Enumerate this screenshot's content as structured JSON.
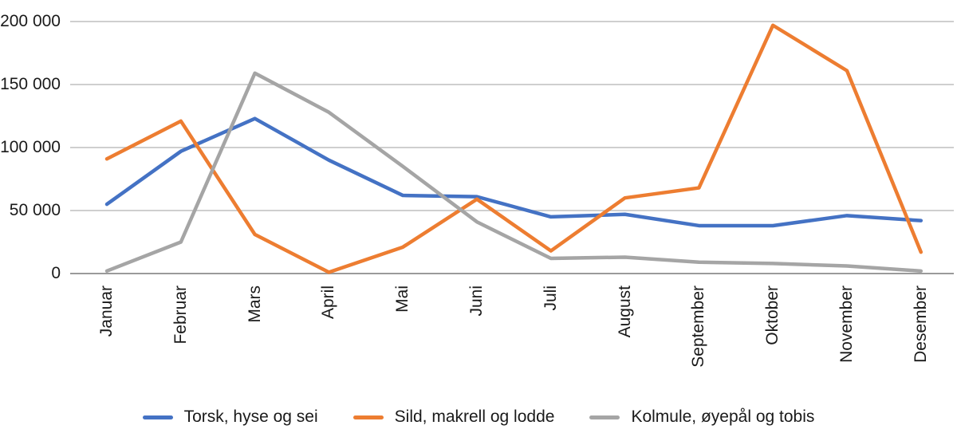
{
  "chart_data": {
    "type": "line",
    "title": "",
    "xlabel": "",
    "ylabel": "",
    "ylim": [
      0,
      200000
    ],
    "grid": "horizontal",
    "legend_position": "bottom",
    "categories": [
      "Januar",
      "Februar",
      "Mars",
      "April",
      "Mai",
      "Juni",
      "Juli",
      "August",
      "September",
      "Oktober",
      "November",
      "Desember"
    ],
    "y_axis": {
      "ticks": [
        {
          "label": "0",
          "value": 0
        },
        {
          "label": "50 000",
          "value": 50000
        },
        {
          "label": "100 000",
          "value": 100000
        },
        {
          "label": "150 000",
          "value": 150000
        },
        {
          "label": "200 000",
          "value": 200000
        }
      ]
    },
    "series": [
      {
        "name": "Torsk, hyse og sei",
        "color": "#4472C4",
        "values": [
          55000,
          97000,
          123000,
          90000,
          62000,
          61000,
          45000,
          47000,
          38000,
          38000,
          46000,
          42000
        ]
      },
      {
        "name": "Sild, makrell og lodde",
        "color": "#ED7D31",
        "values": [
          91000,
          121000,
          31000,
          1000,
          21000,
          59000,
          18000,
          60000,
          68000,
          197000,
          161000,
          17000
        ]
      },
      {
        "name": "Kolmule, øyepål og tobis",
        "color": "#A5A5A5",
        "values": [
          2000,
          25000,
          159000,
          128000,
          85000,
          41000,
          12000,
          13000,
          9000,
          8000,
          6000,
          2000
        ]
      }
    ],
    "colors": {
      "gridline": "#bfbfbf",
      "axis_line": "#9a9a9a",
      "text": "#1a1a1a"
    }
  }
}
